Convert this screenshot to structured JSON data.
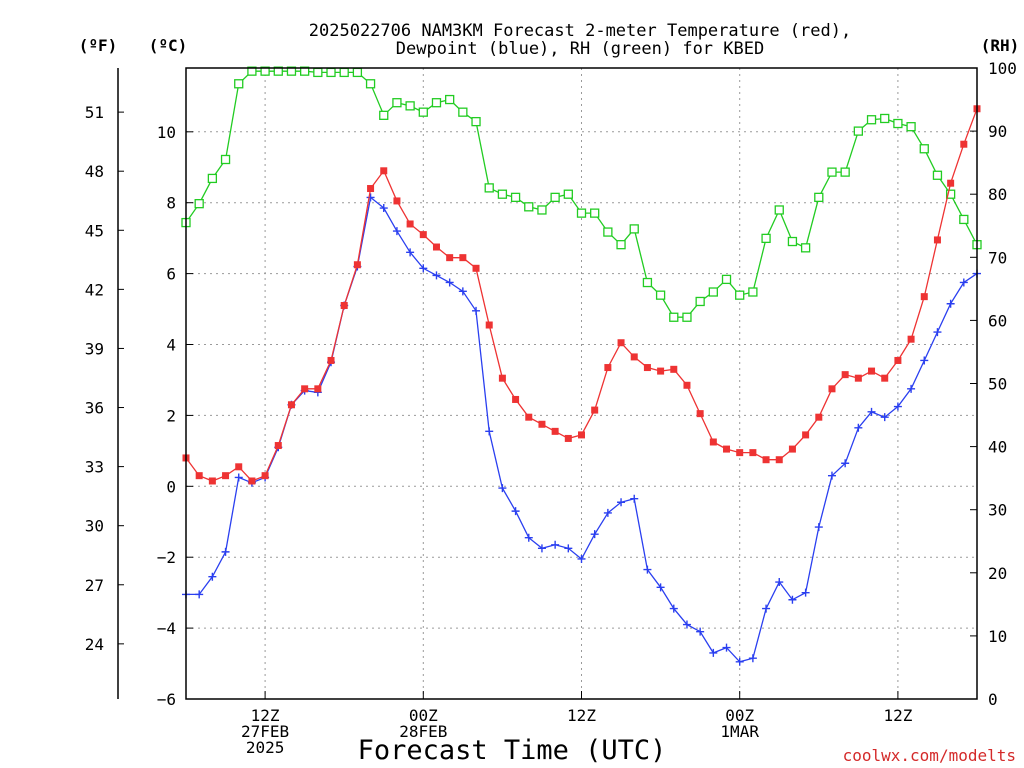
{
  "title": {
    "line1": "2025022706 NAM3KM Forecast 2-meter Temperature (red),",
    "line2": "Dewpoint (blue), RH (green) for KBED"
  },
  "units": {
    "fahrenheit": "(ºF)",
    "celsius": "(ºC)",
    "rh": "(RH)"
  },
  "xlabel": "Forecast Time (UTC)",
  "credit": "coolwx.com/modelts",
  "colors": {
    "temperature": "#ee3333",
    "dewpoint": "#2a3ff0",
    "rh": "#22cc22",
    "credit": "#d42a2a",
    "grid": "#9a9a9a"
  },
  "chart_data": {
    "type": "line",
    "x_unit": "forecast hour from 2025-02-27 06Z",
    "x": [
      0,
      1,
      2,
      3,
      4,
      5,
      6,
      7,
      8,
      9,
      10,
      11,
      12,
      13,
      14,
      15,
      16,
      17,
      18,
      19,
      20,
      21,
      22,
      23,
      24,
      25,
      26,
      27,
      28,
      29,
      30,
      31,
      32,
      33,
      34,
      35,
      36,
      37,
      38,
      39,
      40,
      41,
      42,
      43,
      44,
      45,
      46,
      47,
      48,
      49,
      50,
      51,
      52,
      53,
      54,
      55,
      56,
      57,
      58,
      59,
      60
    ],
    "xlim": [
      0,
      60
    ],
    "x_ticks": [
      {
        "x": 6,
        "lines": [
          "12Z",
          "27FEB",
          "2025"
        ]
      },
      {
        "x": 18,
        "lines": [
          "00Z",
          "28FEB"
        ]
      },
      {
        "x": 30,
        "lines": [
          "12Z"
        ]
      },
      {
        "x": 42,
        "lines": [
          "00Z",
          "1MAR"
        ]
      },
      {
        "x": 54,
        "lines": [
          "12Z"
        ]
      }
    ],
    "celsius_axis": {
      "ylim": [
        -6,
        11.8
      ],
      "ticks": [
        -6,
        -4,
        -2,
        0,
        2,
        4,
        6,
        8,
        10
      ]
    },
    "fahrenheit_axis": {
      "ylim": [
        21.2,
        53.24
      ],
      "ticks": [
        24,
        27,
        30,
        33,
        36,
        39,
        42,
        45,
        48,
        51
      ]
    },
    "rh_axis": {
      "ylim": [
        0,
        100
      ],
      "ticks": [
        0,
        10,
        20,
        30,
        40,
        50,
        60,
        70,
        80,
        90,
        100
      ]
    },
    "grid": true,
    "series": [
      {
        "name": "Temperature",
        "axis": "celsius",
        "marker": "filled-square",
        "values": [
          0.8,
          0.3,
          0.15,
          0.3,
          0.55,
          0.15,
          0.3,
          1.15,
          2.3,
          2.75,
          2.75,
          3.55,
          5.1,
          6.25,
          8.4,
          8.9,
          8.05,
          7.4,
          7.1,
          6.75,
          6.45,
          6.45,
          6.15,
          4.55,
          3.05,
          2.45,
          1.95,
          1.75,
          1.55,
          1.35,
          1.45,
          2.15,
          3.35,
          4.05,
          3.65,
          3.35,
          3.25,
          3.3,
          2.85,
          2.05,
          1.25,
          1.05,
          0.95,
          0.95,
          0.75,
          0.75,
          1.05,
          1.45,
          1.95,
          2.75,
          3.15,
          3.05,
          3.25,
          3.05,
          3.55,
          4.15,
          5.35,
          6.95,
          8.55,
          9.65,
          10.65
        ]
      },
      {
        "name": "Dewpoint",
        "axis": "celsius",
        "marker": "plus",
        "values": [
          -3.05,
          -3.05,
          -2.55,
          -1.85,
          0.25,
          0.1,
          0.25,
          1.1,
          2.3,
          2.7,
          2.65,
          3.5,
          5.1,
          6.2,
          8.15,
          7.85,
          7.2,
          6.6,
          6.15,
          5.95,
          5.75,
          5.5,
          4.95,
          1.55,
          -0.05,
          -0.7,
          -1.45,
          -1.75,
          -1.65,
          -1.75,
          -2.05,
          -1.35,
          -0.75,
          -0.45,
          -0.35,
          -2.35,
          -2.85,
          -3.45,
          -3.9,
          -4.1,
          -4.7,
          -4.55,
          -4.95,
          -4.85,
          -3.45,
          -2.7,
          -3.2,
          -3.0,
          -1.15,
          0.3,
          0.65,
          1.65,
          2.1,
          1.95,
          2.25,
          2.75,
          3.55,
          4.35,
          5.15,
          5.75,
          6.0
        ]
      },
      {
        "name": "RH",
        "axis": "rh",
        "marker": "open-square",
        "values": [
          75.5,
          78.5,
          82.5,
          85.5,
          97.5,
          99.5,
          99.5,
          99.5,
          99.5,
          99.5,
          99.3,
          99.3,
          99.3,
          99.3,
          97.5,
          92.5,
          94.5,
          94,
          93,
          94.5,
          95,
          93,
          91.5,
          81,
          80,
          79.5,
          78,
          77.5,
          79.5,
          80,
          77,
          77,
          74,
          72,
          74.5,
          66,
          64,
          60.5,
          60.5,
          63,
          64.5,
          66.5,
          64,
          64.5,
          73,
          77.5,
          72.5,
          71.5,
          79.5,
          83.5,
          83.5,
          90,
          91.8,
          92,
          91.2,
          90.7,
          87.2,
          83,
          80,
          76,
          72
        ]
      }
    ]
  }
}
